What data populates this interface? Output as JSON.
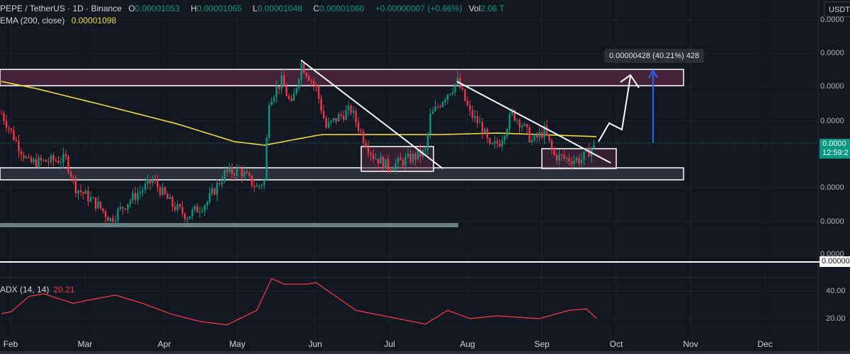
{
  "legend": {
    "symbol": "PEPE / TetherUS · 1D · Binance",
    "open_label": "O",
    "open": "0.00001053",
    "high_label": "H",
    "high": "0.00001065",
    "low_label": "L",
    "low": "0.00001048",
    "close_label": "C",
    "close": "0.00001060",
    "change": "+0.00000007 (+0.66%)",
    "vol_label": "Vol",
    "vol": "2.06 T",
    "ema_label": "EMA (200, close)",
    "ema_value": "0.00001098"
  },
  "price_axis": {
    "currency": "USDT",
    "labels": [
      "0.0000",
      "0.0000",
      "0.0000",
      "0.0000",
      "0.0000",
      "0.0000",
      "0.0000"
    ],
    "current_price": "0.0000",
    "countdown": "12:59:2",
    "line_label": "0.00000"
  },
  "measure_label": "0.00000428 (40.21%) 428",
  "adx": {
    "label": "ADX (14, 14)",
    "value": "20.21",
    "axis_labels": [
      "40.00",
      "20.00"
    ]
  },
  "chart_data": {
    "type": "candlestick",
    "title": "PEPE / TetherUS · 1D · Binance",
    "price_unit": "1e-8 USDT",
    "x_unit": "days from late January",
    "x_ticks": [
      "Feb",
      "Mar",
      "Apr",
      "May",
      "Jun",
      "Jul",
      "Aug",
      "Sep",
      "Oct",
      "Nov",
      "Dec"
    ],
    "close_keypoints": [
      [
        0,
        1236
      ],
      [
        6,
        1068
      ],
      [
        11,
        942
      ],
      [
        26,
        963
      ],
      [
        30,
        795
      ],
      [
        39,
        690
      ],
      [
        44,
        606
      ],
      [
        51,
        711
      ],
      [
        61,
        837
      ],
      [
        69,
        690
      ],
      [
        75,
        627
      ],
      [
        83,
        711
      ],
      [
        90,
        879
      ],
      [
        96,
        900
      ],
      [
        103,
        795
      ],
      [
        106,
        837
      ],
      [
        108,
        1320
      ],
      [
        113,
        1425
      ],
      [
        117,
        1278
      ],
      [
        121,
        1530
      ],
      [
        127,
        1383
      ],
      [
        131,
        1152
      ],
      [
        136,
        1215
      ],
      [
        141,
        1257
      ],
      [
        146,
        1089
      ],
      [
        150,
        984
      ],
      [
        156,
        921
      ],
      [
        164,
        963
      ],
      [
        171,
        1005
      ],
      [
        173,
        1215
      ],
      [
        179,
        1341
      ],
      [
        184,
        1425
      ],
      [
        189,
        1236
      ],
      [
        194,
        1152
      ],
      [
        197,
        1026
      ],
      [
        201,
        1068
      ],
      [
        206,
        1236
      ],
      [
        210,
        1173
      ],
      [
        214,
        1068
      ],
      [
        219,
        1131
      ],
      [
        223,
        984
      ],
      [
        229,
        963
      ],
      [
        234,
        963
      ],
      [
        239,
        1047
      ]
    ],
    "ema200_keypoints": [
      [
        0,
        1425
      ],
      [
        14,
        1383
      ],
      [
        43,
        1278
      ],
      [
        71,
        1173
      ],
      [
        94,
        1068
      ],
      [
        106,
        1047
      ],
      [
        129,
        1110
      ],
      [
        157,
        1110
      ],
      [
        177,
        1110
      ],
      [
        200,
        1119
      ],
      [
        240,
        1098
      ]
    ],
    "adx_keypoints": [
      [
        0,
        23.6
      ],
      [
        4,
        25
      ],
      [
        11,
        36
      ],
      [
        17,
        38
      ],
      [
        29,
        31
      ],
      [
        34,
        33
      ],
      [
        46,
        37
      ],
      [
        57,
        31
      ],
      [
        69,
        23
      ],
      [
        80,
        18
      ],
      [
        91,
        15.5
      ],
      [
        103,
        26
      ],
      [
        109,
        49
      ],
      [
        114,
        45
      ],
      [
        123,
        45
      ],
      [
        127,
        46
      ],
      [
        131,
        41
      ],
      [
        143,
        26
      ],
      [
        157,
        21
      ],
      [
        171,
        16
      ],
      [
        180,
        26
      ],
      [
        189,
        20
      ],
      [
        200,
        22
      ],
      [
        217,
        20
      ],
      [
        229,
        26
      ],
      [
        236,
        27
      ],
      [
        240,
        20.21
      ]
    ],
    "colors": {
      "up": "#089981",
      "down": "#f23645",
      "ema": "#f0d93a",
      "adx": "#f23645",
      "zone": "#5a2a45",
      "target_arrow": "#2962ff"
    }
  }
}
